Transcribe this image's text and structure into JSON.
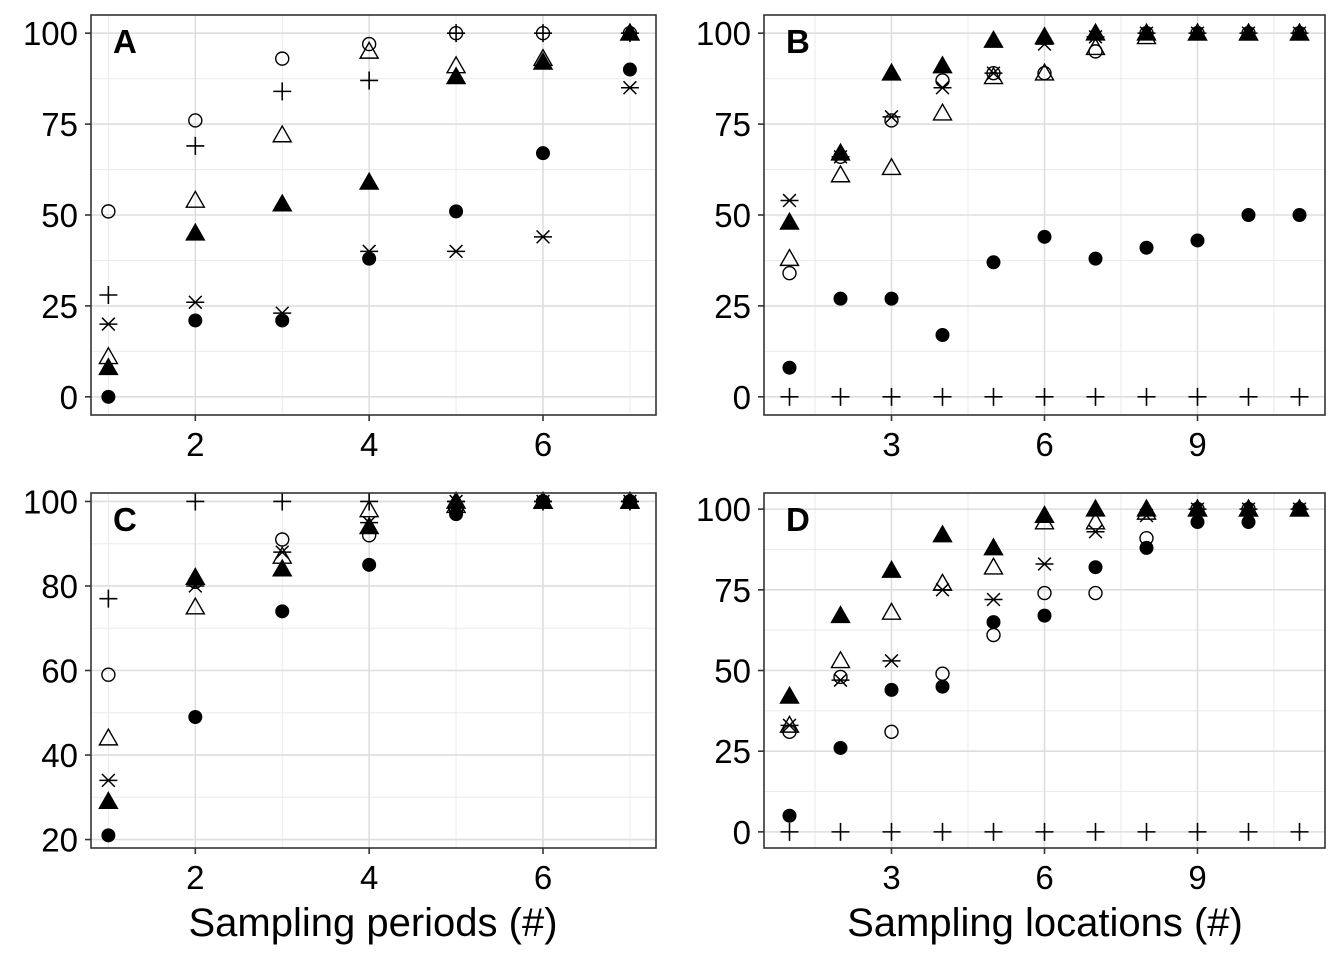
{
  "figure": {
    "xlabel_left": "Sampling periods (#)",
    "xlabel_right": "Sampling locations (#)"
  },
  "chart_data": [
    {
      "panel": "A",
      "type": "scatter",
      "xlim": [
        0.8,
        7.3
      ],
      "ylim": [
        -5,
        105
      ],
      "xticks": [
        2,
        4,
        6
      ],
      "yticks": [
        0,
        25,
        50,
        75,
        100
      ],
      "grid": true,
      "series": [
        {
          "marker": "open-circle",
          "points": [
            [
              1,
              51
            ],
            [
              2,
              76
            ],
            [
              3,
              93
            ],
            [
              4,
              97
            ],
            [
              5,
              100
            ],
            [
              6,
              100
            ],
            [
              7,
              100
            ]
          ]
        },
        {
          "marker": "filled-circle",
          "points": [
            [
              1,
              0
            ],
            [
              2,
              21
            ],
            [
              3,
              21
            ],
            [
              4,
              38
            ],
            [
              5,
              51
            ],
            [
              6,
              67
            ],
            [
              7,
              90
            ]
          ]
        },
        {
          "marker": "open-triangle",
          "points": [
            [
              1,
              11
            ],
            [
              2,
              54
            ],
            [
              3,
              72
            ],
            [
              4,
              95
            ],
            [
              5,
              91
            ],
            [
              6,
              93
            ],
            [
              7,
              100
            ]
          ]
        },
        {
          "marker": "filled-triangle",
          "points": [
            [
              1,
              8
            ],
            [
              2,
              45
            ],
            [
              3,
              53
            ],
            [
              4,
              59
            ],
            [
              5,
              88
            ],
            [
              6,
              92
            ],
            [
              7,
              100
            ]
          ]
        },
        {
          "marker": "plus",
          "points": [
            [
              1,
              28
            ],
            [
              2,
              69
            ],
            [
              3,
              84
            ],
            [
              4,
              87
            ],
            [
              5,
              100
            ],
            [
              6,
              100
            ],
            [
              7,
              100
            ]
          ]
        },
        {
          "marker": "asterisk",
          "points": [
            [
              1,
              20
            ],
            [
              2,
              26
            ],
            [
              3,
              23
            ],
            [
              4,
              40
            ],
            [
              5,
              40
            ],
            [
              6,
              44
            ],
            [
              7,
              85
            ]
          ]
        }
      ]
    },
    {
      "panel": "B",
      "type": "scatter",
      "xlim": [
        0.5,
        11.5
      ],
      "ylim": [
        -5,
        105
      ],
      "xticks": [
        3,
        6,
        9
      ],
      "yticks": [
        0,
        25,
        50,
        75,
        100
      ],
      "grid": true,
      "series": [
        {
          "marker": "open-circle",
          "points": [
            [
              1,
              34
            ],
            [
              2,
              66
            ],
            [
              3,
              76
            ],
            [
              4,
              87
            ],
            [
              5,
              89
            ],
            [
              6,
              89
            ],
            [
              7,
              95
            ],
            [
              8,
              100
            ],
            [
              9,
              100
            ],
            [
              10,
              100
            ],
            [
              11,
              100
            ]
          ]
        },
        {
          "marker": "filled-circle",
          "points": [
            [
              1,
              8
            ],
            [
              2,
              27
            ],
            [
              3,
              27
            ],
            [
              4,
              17
            ],
            [
              5,
              37
            ],
            [
              6,
              44
            ],
            [
              7,
              38
            ],
            [
              8,
              41
            ],
            [
              9,
              43
            ],
            [
              10,
              50
            ],
            [
              11,
              50
            ]
          ]
        },
        {
          "marker": "open-triangle",
          "points": [
            [
              1,
              38
            ],
            [
              2,
              61
            ],
            [
              3,
              63
            ],
            [
              4,
              78
            ],
            [
              5,
              88
            ],
            [
              6,
              89
            ],
            [
              7,
              96
            ],
            [
              8,
              99
            ],
            [
              9,
              100
            ],
            [
              10,
              100
            ],
            [
              11,
              100
            ]
          ]
        },
        {
          "marker": "filled-triangle",
          "points": [
            [
              1,
              48
            ],
            [
              2,
              67
            ],
            [
              3,
              89
            ],
            [
              4,
              91
            ],
            [
              5,
              98
            ],
            [
              6,
              99
            ],
            [
              7,
              100
            ],
            [
              8,
              100
            ],
            [
              9,
              100
            ],
            [
              10,
              100
            ],
            [
              11,
              100
            ]
          ]
        },
        {
          "marker": "plus",
          "points": [
            [
              1,
              0
            ],
            [
              2,
              0
            ],
            [
              3,
              0
            ],
            [
              4,
              0
            ],
            [
              5,
              0
            ],
            [
              6,
              0
            ],
            [
              7,
              0
            ],
            [
              8,
              0
            ],
            [
              9,
              0
            ],
            [
              10,
              0
            ],
            [
              11,
              0
            ]
          ]
        },
        {
          "marker": "asterisk",
          "points": [
            [
              1,
              54
            ],
            [
              2,
              66
            ],
            [
              3,
              77
            ],
            [
              4,
              85
            ],
            [
              5,
              89
            ],
            [
              6,
              97
            ],
            [
              7,
              99
            ],
            [
              8,
              100
            ],
            [
              9,
              100
            ],
            [
              10,
              100
            ],
            [
              11,
              100
            ]
          ]
        }
      ]
    },
    {
      "panel": "C",
      "type": "scatter",
      "xlim": [
        0.8,
        7.3
      ],
      "ylim": [
        18,
        102
      ],
      "xticks": [
        2,
        4,
        6
      ],
      "yticks": [
        20,
        40,
        60,
        80,
        100
      ],
      "grid": true,
      "series": [
        {
          "marker": "open-circle",
          "points": [
            [
              1,
              59
            ],
            [
              2,
              81
            ],
            [
              3,
              91
            ],
            [
              4,
              92
            ],
            [
              5,
              98
            ],
            [
              6,
              100
            ],
            [
              7,
              100
            ]
          ]
        },
        {
          "marker": "filled-circle",
          "points": [
            [
              1,
              21
            ],
            [
              2,
              49
            ],
            [
              3,
              74
            ],
            [
              4,
              85
            ],
            [
              5,
              97
            ],
            [
              6,
              100
            ],
            [
              7,
              100
            ]
          ]
        },
        {
          "marker": "open-triangle",
          "points": [
            [
              1,
              44
            ],
            [
              2,
              75
            ],
            [
              3,
              87
            ],
            [
              4,
              98
            ],
            [
              5,
              99
            ],
            [
              6,
              100
            ],
            [
              7,
              100
            ]
          ]
        },
        {
          "marker": "filled-triangle",
          "points": [
            [
              1,
              29
            ],
            [
              2,
              82
            ],
            [
              3,
              84
            ],
            [
              4,
              94
            ],
            [
              5,
              100
            ],
            [
              6,
              100
            ],
            [
              7,
              100
            ]
          ]
        },
        {
          "marker": "plus",
          "points": [
            [
              1,
              77
            ],
            [
              2,
              100
            ],
            [
              3,
              100
            ],
            [
              4,
              100
            ],
            [
              5,
              100
            ],
            [
              6,
              100
            ],
            [
              7,
              100
            ]
          ]
        },
        {
          "marker": "asterisk",
          "points": [
            [
              1,
              34
            ],
            [
              2,
              80
            ],
            [
              3,
              88
            ],
            [
              4,
              95
            ],
            [
              5,
              100
            ],
            [
              6,
              100
            ],
            [
              7,
              100
            ]
          ]
        }
      ]
    },
    {
      "panel": "D",
      "type": "scatter",
      "xlim": [
        0.5,
        11.5
      ],
      "ylim": [
        -5,
        105
      ],
      "xticks": [
        3,
        6,
        9
      ],
      "yticks": [
        0,
        25,
        50,
        75,
        100
      ],
      "grid": true,
      "series": [
        {
          "marker": "open-circle",
          "points": [
            [
              1,
              31
            ],
            [
              2,
              48
            ],
            [
              3,
              31
            ],
            [
              4,
              49
            ],
            [
              5,
              61
            ],
            [
              6,
              74
            ],
            [
              7,
              74
            ],
            [
              8,
              91
            ],
            [
              9,
              100
            ],
            [
              10,
              100
            ],
            [
              11,
              100
            ]
          ]
        },
        {
          "marker": "filled-circle",
          "points": [
            [
              1,
              5
            ],
            [
              2,
              26
            ],
            [
              3,
              44
            ],
            [
              4,
              45
            ],
            [
              5,
              65
            ],
            [
              6,
              67
            ],
            [
              7,
              82
            ],
            [
              8,
              88
            ],
            [
              9,
              96
            ],
            [
              10,
              96
            ],
            [
              11,
              100
            ]
          ]
        },
        {
          "marker": "open-triangle",
          "points": [
            [
              1,
              33
            ],
            [
              2,
              53
            ],
            [
              3,
              68
            ],
            [
              4,
              77
            ],
            [
              5,
              82
            ],
            [
              6,
              96
            ],
            [
              7,
              96
            ],
            [
              8,
              99
            ],
            [
              9,
              100
            ],
            [
              10,
              100
            ],
            [
              11,
              100
            ]
          ]
        },
        {
          "marker": "filled-triangle",
          "points": [
            [
              1,
              42
            ],
            [
              2,
              67
            ],
            [
              3,
              81
            ],
            [
              4,
              92
            ],
            [
              5,
              88
            ],
            [
              6,
              98
            ],
            [
              7,
              100
            ],
            [
              8,
              100
            ],
            [
              9,
              100
            ],
            [
              10,
              100
            ],
            [
              11,
              100
            ]
          ]
        },
        {
          "marker": "plus",
          "points": [
            [
              1,
              0
            ],
            [
              2,
              0
            ],
            [
              3,
              0
            ],
            [
              4,
              0
            ],
            [
              5,
              0
            ],
            [
              6,
              0
            ],
            [
              7,
              0
            ],
            [
              8,
              0
            ],
            [
              9,
              0
            ],
            [
              10,
              0
            ],
            [
              11,
              0
            ]
          ]
        },
        {
          "marker": "asterisk",
          "points": [
            [
              1,
              33
            ],
            [
              2,
              47
            ],
            [
              3,
              53
            ],
            [
              4,
              75
            ],
            [
              5,
              72
            ],
            [
              6,
              83
            ],
            [
              7,
              93
            ],
            [
              8,
              98
            ],
            [
              9,
              100
            ],
            [
              10,
              100
            ],
            [
              11,
              100
            ]
          ]
        }
      ]
    }
  ]
}
